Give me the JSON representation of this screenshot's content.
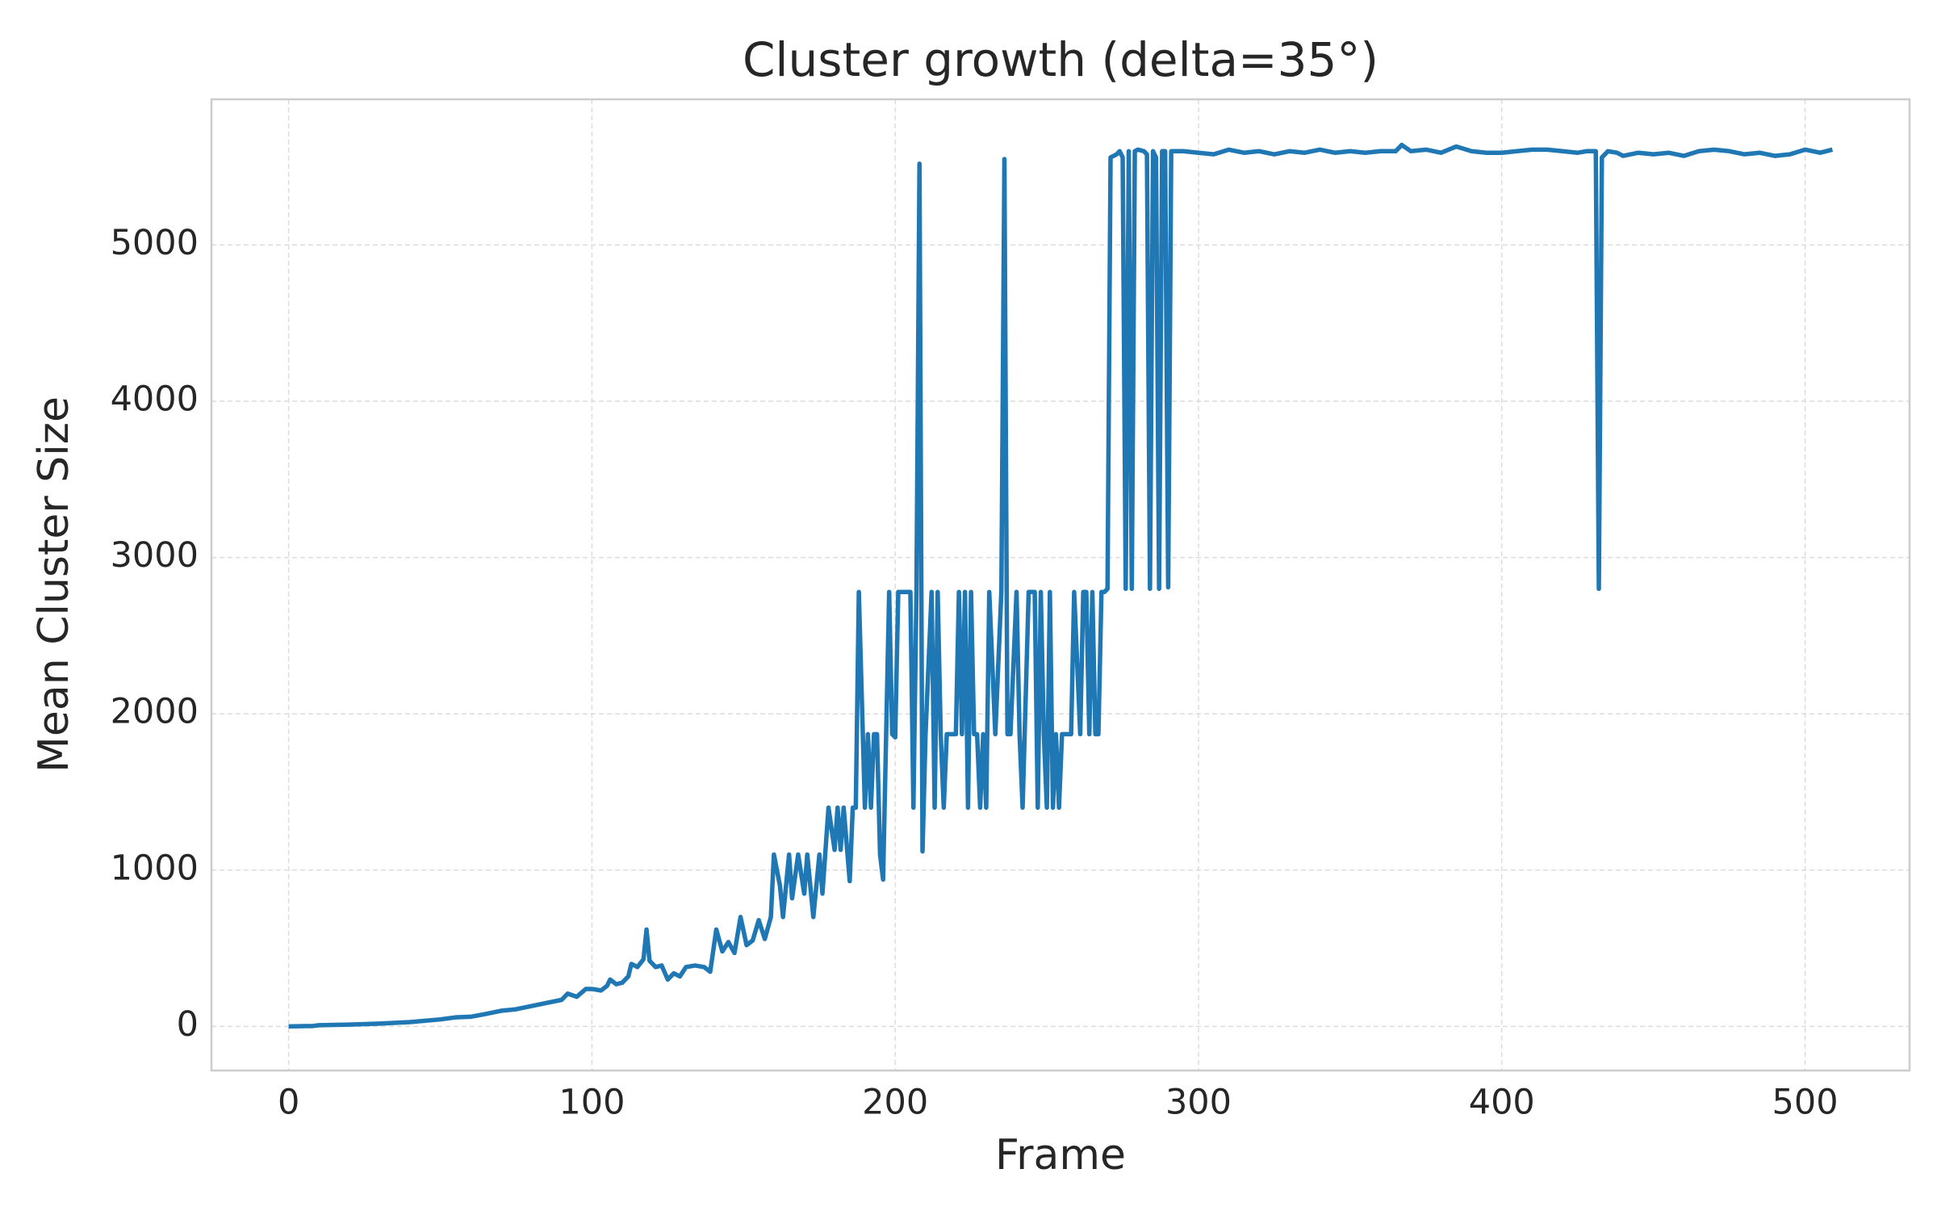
{
  "chart_data": {
    "type": "line",
    "title": "Cluster growth (delta=35°)",
    "x_label": "Frame",
    "y_label": "Mean Cluster Size",
    "x": [
      0,
      5,
      8,
      10,
      20,
      30,
      40,
      50,
      55,
      60,
      65,
      70,
      75,
      80,
      85,
      90,
      92,
      95,
      98,
      100,
      103,
      105,
      106,
      108,
      110,
      112,
      113,
      115,
      117,
      118,
      119,
      121,
      123,
      125,
      127,
      129,
      131,
      134,
      137,
      139,
      141,
      143,
      145,
      147,
      149,
      151,
      153,
      155,
      157,
      159,
      160,
      162,
      163,
      165,
      166,
      168,
      170,
      171,
      173,
      175,
      176,
      178,
      180,
      181,
      182,
      183,
      185,
      186,
      187,
      188,
      190,
      191,
      192,
      193,
      194,
      195,
      196,
      198,
      199,
      200,
      201,
      203,
      205,
      206,
      207,
      208,
      209,
      210,
      212,
      213,
      214,
      215,
      216,
      217,
      219,
      220,
      221,
      222,
      223,
      224,
      225,
      226,
      227,
      228,
      229,
      230,
      231,
      233,
      235,
      236,
      237,
      238,
      240,
      241,
      242,
      244,
      246,
      247,
      248,
      249,
      250,
      251,
      252,
      253,
      254,
      255,
      257,
      258,
      259,
      261,
      262,
      263,
      264,
      265,
      266,
      267,
      268,
      269,
      270,
      271,
      273,
      274,
      275,
      276,
      277,
      278,
      279,
      280,
      282,
      283,
      284,
      285,
      286,
      287,
      288,
      289,
      290,
      291,
      295,
      300,
      305,
      310,
      315,
      320,
      325,
      330,
      335,
      340,
      345,
      350,
      355,
      360,
      365,
      367,
      370,
      375,
      380,
      385,
      390,
      395,
      400,
      405,
      410,
      415,
      420,
      425,
      428,
      431,
      432,
      433,
      435,
      438,
      440,
      445,
      450,
      455,
      460,
      465,
      470,
      475,
      480,
      485,
      490,
      495,
      500,
      505,
      509
    ],
    "series": [
      {
        "name": "Mean Cluster Size",
        "color": "#1f77b4",
        "values": [
          0,
          2,
          3,
          8,
          12,
          18,
          28,
          45,
          58,
          62,
          80,
          100,
          110,
          130,
          150,
          170,
          210,
          190,
          240,
          240,
          230,
          260,
          300,
          270,
          280,
          320,
          400,
          380,
          430,
          620,
          420,
          380,
          390,
          300,
          340,
          320,
          380,
          390,
          380,
          350,
          620,
          480,
          540,
          470,
          700,
          520,
          550,
          680,
          560,
          700,
          1100,
          900,
          700,
          1100,
          820,
          1100,
          850,
          1100,
          700,
          1100,
          850,
          1400,
          1130,
          1400,
          1130,
          1400,
          930,
          1400,
          1400,
          2780,
          1400,
          1870,
          1400,
          1870,
          1870,
          1100,
          940,
          2780,
          1870,
          1850,
          2780,
          2780,
          2780,
          1400,
          2780,
          5520,
          1120,
          1870,
          2780,
          1400,
          2780,
          1870,
          1400,
          1870,
          1870,
          1870,
          2780,
          1870,
          2780,
          1400,
          2780,
          1870,
          1870,
          1400,
          1870,
          1400,
          2780,
          1870,
          2780,
          5550,
          1870,
          1870,
          2780,
          1870,
          1400,
          2780,
          2780,
          1400,
          2780,
          1870,
          1400,
          2780,
          1400,
          1870,
          1400,
          1870,
          1870,
          1870,
          2780,
          1870,
          2780,
          2780,
          1870,
          2780,
          1870,
          1870,
          2780,
          2780,
          2800,
          5560,
          5580,
          5600,
          5560,
          2800,
          5600,
          2800,
          5600,
          5610,
          5600,
          5580,
          2800,
          5600,
          5560,
          2800,
          5600,
          5600,
          2810,
          5600,
          5600,
          5590,
          5580,
          5610,
          5590,
          5600,
          5580,
          5600,
          5590,
          5610,
          5590,
          5600,
          5590,
          5600,
          5600,
          5640,
          5600,
          5610,
          5590,
          5630,
          5600,
          5590,
          5590,
          5600,
          5610,
          5610,
          5600,
          5590,
          5600,
          5600,
          2800,
          5560,
          5600,
          5590,
          5570,
          5590,
          5580,
          5590,
          5570,
          5600,
          5610,
          5600,
          5580,
          5590,
          5570,
          5580,
          5610,
          5590,
          5610
        ]
      }
    ],
    "xlim": [
      -25.45,
      534.45
    ],
    "ylim": [
      -282,
      5932
    ],
    "xticks": [
      0,
      100,
      200,
      300,
      400,
      500
    ],
    "yticks": [
      0,
      1000,
      2000,
      3000,
      4000,
      5000
    ],
    "grid": true
  }
}
